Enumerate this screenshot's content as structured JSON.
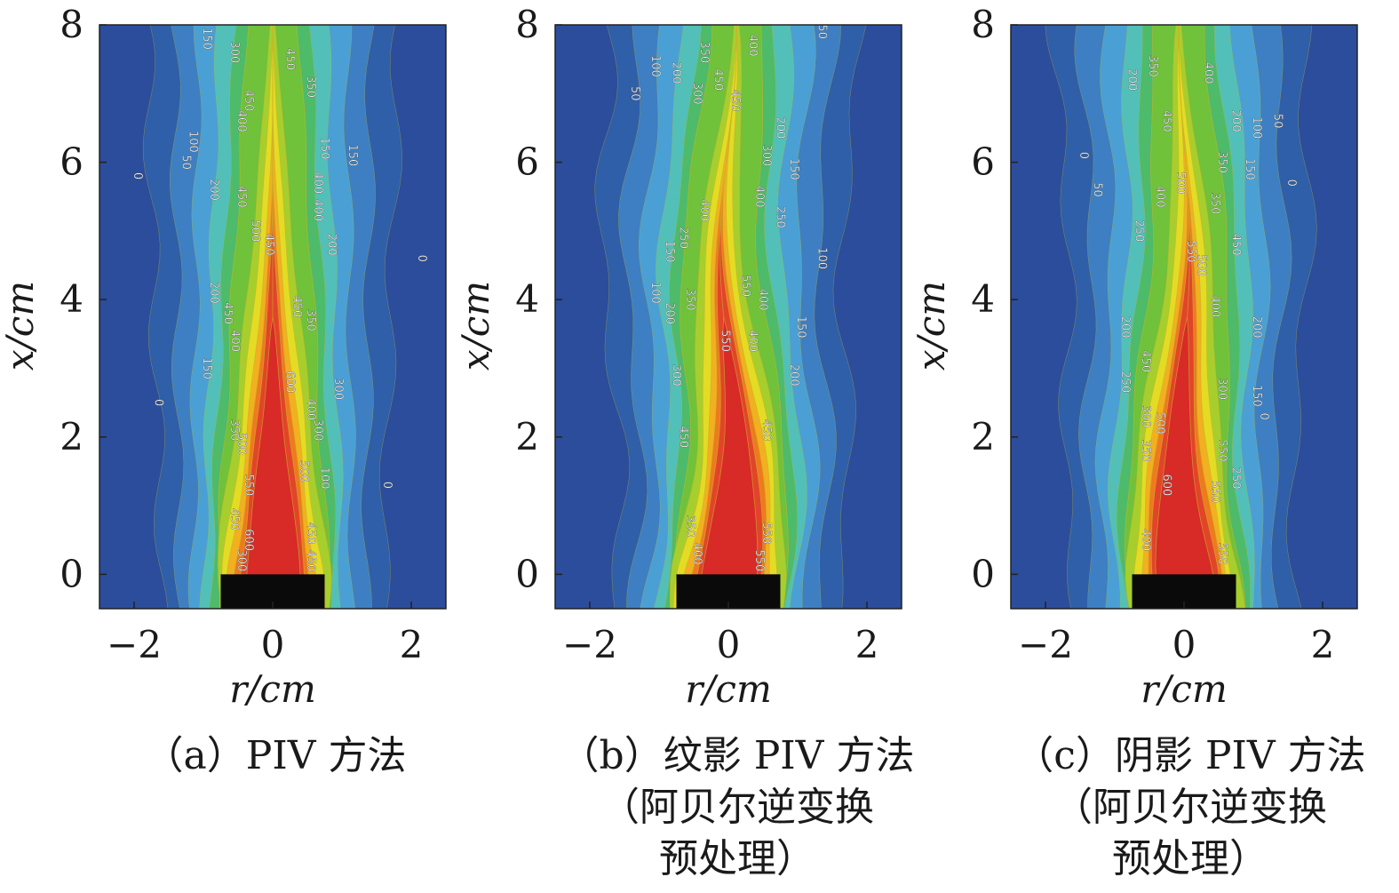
{
  "chart_data": [
    {
      "type": "contour",
      "panel": "a",
      "caption": [
        "（a）PIV 方法"
      ],
      "xlabel": "r/cm",
      "ylabel": "x/cm",
      "xlim": [
        -2.5,
        2.5
      ],
      "ylim": [
        -0.5,
        8
      ],
      "xticks": [
        -2,
        0,
        2
      ],
      "xtick_labels": [
        "−2",
        "0",
        "2"
      ],
      "yticks": [
        0,
        2,
        4,
        6,
        8
      ],
      "ytick_labels": [
        "0",
        "2",
        "4",
        "6",
        "8"
      ],
      "nozzle": {
        "r_min": -0.75,
        "r_max": 0.75,
        "x_min": -0.5,
        "x_max": 0
      },
      "levels": [
        0,
        50,
        100,
        150,
        200,
        250,
        300,
        350,
        400,
        450,
        500,
        550,
        600
      ],
      "contour_labels": [
        {
          "r": -1.0,
          "x": 7.8,
          "text": "150"
        },
        {
          "r": -0.6,
          "x": 7.6,
          "text": "300"
        },
        {
          "r": 0.2,
          "x": 7.5,
          "text": "450"
        },
        {
          "r": 0.5,
          "x": 7.1,
          "text": "350"
        },
        {
          "r": -0.4,
          "x": 6.9,
          "text": "450"
        },
        {
          "r": -0.5,
          "x": 6.6,
          "text": "400"
        },
        {
          "r": -1.2,
          "x": 6.3,
          "text": "100"
        },
        {
          "r": -1.3,
          "x": 6.0,
          "text": "50"
        },
        {
          "r": 0.7,
          "x": 6.2,
          "text": "150"
        },
        {
          "r": 1.1,
          "x": 6.1,
          "text": "150"
        },
        {
          "r": -0.9,
          "x": 5.6,
          "text": "200"
        },
        {
          "r": -0.5,
          "x": 5.5,
          "text": "450"
        },
        {
          "r": 0.6,
          "x": 5.7,
          "text": "400"
        },
        {
          "r": 0.6,
          "x": 5.3,
          "text": "400"
        },
        {
          "r": -0.3,
          "x": 5.0,
          "text": "500"
        },
        {
          "r": -0.1,
          "x": 4.8,
          "text": "450"
        },
        {
          "r": 0.8,
          "x": 4.8,
          "text": "200"
        },
        {
          "r": -2.0,
          "x": 5.8,
          "text": "0"
        },
        {
          "r": 2.1,
          "x": 4.6,
          "text": "0"
        },
        {
          "r": -0.9,
          "x": 4.1,
          "text": "200"
        },
        {
          "r": -0.7,
          "x": 3.8,
          "text": "450"
        },
        {
          "r": 0.3,
          "x": 3.9,
          "text": "450"
        },
        {
          "r": 0.5,
          "x": 3.7,
          "text": "350"
        },
        {
          "r": -0.6,
          "x": 3.4,
          "text": "400"
        },
        {
          "r": -1.0,
          "x": 3.0,
          "text": "150"
        },
        {
          "r": 0.2,
          "x": 2.8,
          "text": "600"
        },
        {
          "r": 0.9,
          "x": 2.7,
          "text": "300"
        },
        {
          "r": 0.5,
          "x": 2.4,
          "text": "400"
        },
        {
          "r": -1.7,
          "x": 2.5,
          "text": "0"
        },
        {
          "r": -0.6,
          "x": 2.1,
          "text": "350"
        },
        {
          "r": -0.5,
          "x": 1.9,
          "text": "500"
        },
        {
          "r": 0.6,
          "x": 2.1,
          "text": "300"
        },
        {
          "r": 0.4,
          "x": 1.5,
          "text": "500"
        },
        {
          "r": -0.4,
          "x": 1.3,
          "text": "550"
        },
        {
          "r": 0.7,
          "x": 1.4,
          "text": "100"
        },
        {
          "r": 1.6,
          "x": 1.3,
          "text": "0"
        },
        {
          "r": -0.6,
          "x": 0.8,
          "text": "450"
        },
        {
          "r": -0.4,
          "x": 0.5,
          "text": "600"
        },
        {
          "r": 0.5,
          "x": 0.6,
          "text": "450"
        },
        {
          "r": -0.5,
          "x": 0.2,
          "text": "300"
        },
        {
          "r": 0.5,
          "x": 0.2,
          "text": "450"
        }
      ]
    },
    {
      "type": "contour",
      "panel": "b",
      "caption": [
        "（b）纹影 PIV 方法",
        "（阿贝尔逆变换",
        "预处理）"
      ],
      "xlabel": "r/cm",
      "ylabel": "x/cm",
      "xlim": [
        -2.5,
        2.5
      ],
      "ylim": [
        -0.5,
        8
      ],
      "xticks": [
        -2,
        0,
        2
      ],
      "xtick_labels": [
        "−2",
        "0",
        "2"
      ],
      "yticks": [
        0,
        2,
        4,
        6,
        8
      ],
      "ytick_labels": [
        "0",
        "2",
        "4",
        "6",
        "8"
      ],
      "nozzle": {
        "r_min": -0.75,
        "r_max": 0.75,
        "x_min": -0.5,
        "x_max": 0
      },
      "levels": [
        0,
        50,
        100,
        150,
        200,
        250,
        300,
        350,
        400,
        450,
        500,
        550,
        600
      ],
      "contour_labels": [
        {
          "r": -1.1,
          "x": 7.4,
          "text": "100"
        },
        {
          "r": -0.8,
          "x": 7.3,
          "text": "200"
        },
        {
          "r": -0.4,
          "x": 7.6,
          "text": "350"
        },
        {
          "r": 0.3,
          "x": 7.7,
          "text": "400"
        },
        {
          "r": -0.2,
          "x": 7.2,
          "text": "450"
        },
        {
          "r": -0.5,
          "x": 7.0,
          "text": "300"
        },
        {
          "r": 0.05,
          "x": 6.9,
          "text": "450"
        },
        {
          "r": -1.4,
          "x": 7.0,
          "text": "50"
        },
        {
          "r": 1.3,
          "x": 7.9,
          "text": "50"
        },
        {
          "r": 0.7,
          "x": 6.5,
          "text": "200"
        },
        {
          "r": 0.5,
          "x": 6.1,
          "text": "300"
        },
        {
          "r": 0.9,
          "x": 5.9,
          "text": "150"
        },
        {
          "r": 0.4,
          "x": 5.5,
          "text": "400"
        },
        {
          "r": -0.4,
          "x": 5.3,
          "text": "400"
        },
        {
          "r": 0.7,
          "x": 5.2,
          "text": "250"
        },
        {
          "r": -0.7,
          "x": 4.9,
          "text": "250"
        },
        {
          "r": -0.9,
          "x": 4.7,
          "text": "150"
        },
        {
          "r": 1.3,
          "x": 4.6,
          "text": "100"
        },
        {
          "r": -1.1,
          "x": 4.1,
          "text": "100"
        },
        {
          "r": -0.6,
          "x": 4.0,
          "text": "350"
        },
        {
          "r": 0.2,
          "x": 4.2,
          "text": "550"
        },
        {
          "r": 0.45,
          "x": 4.0,
          "text": "400"
        },
        {
          "r": -0.9,
          "x": 3.8,
          "text": "200"
        },
        {
          "r": -0.1,
          "x": 3.4,
          "text": "550"
        },
        {
          "r": 0.3,
          "x": 3.4,
          "text": "400"
        },
        {
          "r": 1.0,
          "x": 3.6,
          "text": "150"
        },
        {
          "r": -0.8,
          "x": 2.9,
          "text": "300"
        },
        {
          "r": 0.9,
          "x": 2.9,
          "text": "200"
        },
        {
          "r": -0.7,
          "x": 2.0,
          "text": "450"
        },
        {
          "r": 0.5,
          "x": 2.1,
          "text": "450"
        },
        {
          "r": -0.6,
          "x": 0.7,
          "text": "350"
        },
        {
          "r": 0.5,
          "x": 0.6,
          "text": "550"
        },
        {
          "r": -0.5,
          "x": 0.3,
          "text": "400"
        },
        {
          "r": 0.4,
          "x": 0.2,
          "text": "550"
        }
      ]
    },
    {
      "type": "contour",
      "panel": "c",
      "caption": [
        "（c）阴影 PIV 方法",
        "（阿贝尔逆变换",
        "预处理）"
      ],
      "xlabel": "r/cm",
      "ylabel": "x/cm",
      "xlim": [
        -2.5,
        2.5
      ],
      "ylim": [
        -0.5,
        8
      ],
      "xticks": [
        -2,
        0,
        2
      ],
      "xtick_labels": [
        "−2",
        "0",
        "2"
      ],
      "yticks": [
        0,
        2,
        4,
        6,
        8
      ],
      "ytick_labels": [
        "0",
        "2",
        "4",
        "6",
        "8"
      ],
      "nozzle": {
        "r_min": -0.75,
        "r_max": 0.75,
        "x_min": -0.5,
        "x_max": 0
      },
      "levels": [
        0,
        50,
        100,
        150,
        200,
        250,
        300,
        350,
        400,
        450,
        500,
        550,
        600
      ],
      "contour_labels": [
        {
          "r": -0.8,
          "x": 7.2,
          "text": "200"
        },
        {
          "r": -0.5,
          "x": 7.4,
          "text": "350"
        },
        {
          "r": 0.3,
          "x": 7.3,
          "text": "400"
        },
        {
          "r": -0.3,
          "x": 6.6,
          "text": "450"
        },
        {
          "r": 0.7,
          "x": 6.6,
          "text": "200"
        },
        {
          "r": 1.0,
          "x": 6.5,
          "text": "100"
        },
        {
          "r": 1.3,
          "x": 6.6,
          "text": "50"
        },
        {
          "r": -1.5,
          "x": 6.1,
          "text": "0"
        },
        {
          "r": -1.3,
          "x": 5.6,
          "text": "50"
        },
        {
          "r": 0.5,
          "x": 6.0,
          "text": "350"
        },
        {
          "r": 0.9,
          "x": 5.9,
          "text": "150"
        },
        {
          "r": -0.4,
          "x": 5.5,
          "text": "400"
        },
        {
          "r": -0.1,
          "x": 5.7,
          "text": "500"
        },
        {
          "r": 0.4,
          "x": 5.4,
          "text": "350"
        },
        {
          "r": 1.5,
          "x": 5.7,
          "text": "0"
        },
        {
          "r": -0.7,
          "x": 5.0,
          "text": "250"
        },
        {
          "r": 0.05,
          "x": 4.7,
          "text": "550"
        },
        {
          "r": 0.2,
          "x": 4.5,
          "text": "500"
        },
        {
          "r": 0.7,
          "x": 4.8,
          "text": "450"
        },
        {
          "r": 0.4,
          "x": 3.9,
          "text": "400"
        },
        {
          "r": -0.9,
          "x": 3.6,
          "text": "200"
        },
        {
          "r": 1.0,
          "x": 3.6,
          "text": "200"
        },
        {
          "r": -0.6,
          "x": 3.1,
          "text": "450"
        },
        {
          "r": -0.9,
          "x": 2.8,
          "text": "250"
        },
        {
          "r": 0.5,
          "x": 2.7,
          "text": "300"
        },
        {
          "r": 1.0,
          "x": 2.6,
          "text": "150"
        },
        {
          "r": -0.6,
          "x": 2.3,
          "text": "300"
        },
        {
          "r": -0.4,
          "x": 2.2,
          "text": "500"
        },
        {
          "r": 1.1,
          "x": 2.3,
          "text": "0"
        },
        {
          "r": -0.6,
          "x": 1.8,
          "text": "350"
        },
        {
          "r": 0.5,
          "x": 1.8,
          "text": "550"
        },
        {
          "r": 0.7,
          "x": 1.4,
          "text": "250"
        },
        {
          "r": -0.3,
          "x": 1.3,
          "text": "600"
        },
        {
          "r": 0.4,
          "x": 1.2,
          "text": "550"
        },
        {
          "r": -0.6,
          "x": 0.5,
          "text": "400"
        },
        {
          "r": 0.5,
          "x": 0.3,
          "text": "550"
        }
      ]
    }
  ]
}
